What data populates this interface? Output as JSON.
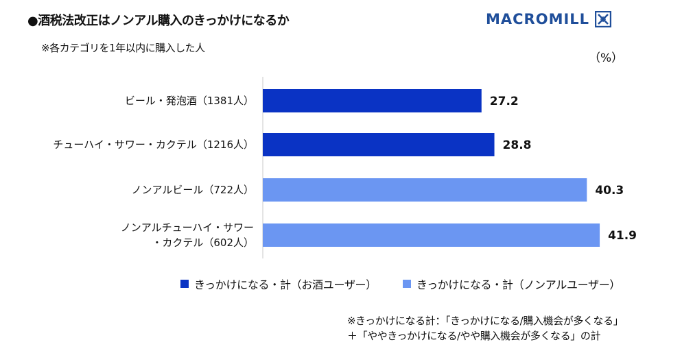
{
  "title": "●酒税法改正はノンアル購入のきっかけになるか",
  "subtitle": "※各カテゴリを1年以内に購入した人",
  "brand": {
    "name": "MACROMILL",
    "color": "#1f4e9a",
    "icon": "macromill-logo-icon"
  },
  "unit": "（%）",
  "chart_data": {
    "type": "bar",
    "orientation": "horizontal",
    "categories": [
      [
        "ビール・発泡酒（1381人）"
      ],
      [
        "チューハイ・サワー・カクテル（1216人）"
      ],
      [
        "ノンアルビール（722人）"
      ],
      [
        "ノンアルチューハイ・サワー",
        "・カクテル（602人）"
      ]
    ],
    "values": [
      27.2,
      28.8,
      40.3,
      41.9
    ],
    "value_labels": [
      "27.2",
      "28.8",
      "40.3",
      "41.9"
    ],
    "groups": [
      0,
      0,
      1,
      1
    ],
    "series": [
      {
        "name": "きっかけになる・計（お酒ユーザー）",
        "color": "#0a33c4"
      },
      {
        "name": "きっかけになる・計（ノンアルユーザー）",
        "color": "#6b96f2"
      }
    ],
    "xlim": [
      0,
      50
    ],
    "grid": false,
    "legend": "bottom"
  },
  "notes": [
    "※きっかけになる計：「きっかけになる/購入機会が多くなる」",
    "＋「ややきっかけになる/やや購入機会が多くなる」の計"
  ]
}
